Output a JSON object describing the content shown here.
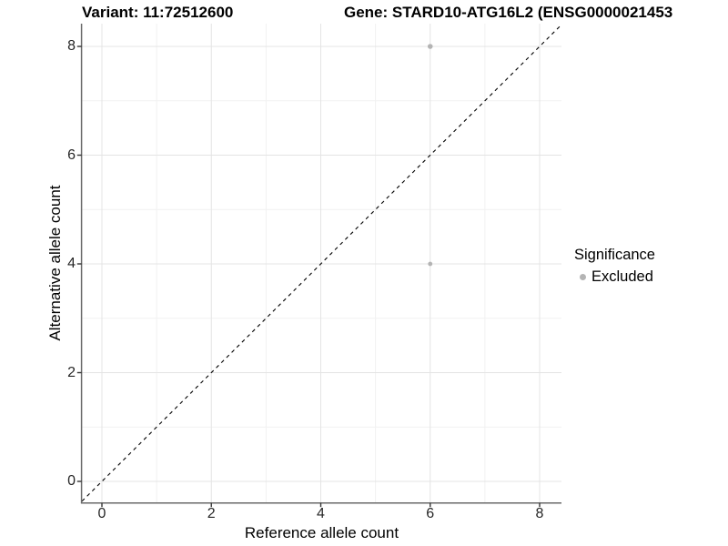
{
  "title": {
    "variant": "Variant: 11:72512600",
    "gene": "Gene: STARD10-ATG16L2 (ENSG0000021453"
  },
  "chart_data": {
    "type": "scatter",
    "x": {
      "label": "Reference allele count",
      "ticks": [
        0,
        2,
        4,
        6,
        8
      ],
      "minor_ticks": [
        1,
        3,
        5,
        7
      ],
      "range": [
        -0.37,
        8.4
      ]
    },
    "y": {
      "label": "Alternative allele count",
      "ticks": [
        0,
        2,
        4,
        6,
        8
      ],
      "minor_ticks": [
        1,
        3,
        5,
        7
      ],
      "range": [
        -0.38,
        8.42
      ]
    },
    "series": [
      {
        "name": "Excluded",
        "color": "#b4b4b4",
        "points": [
          {
            "x": 6,
            "y": 8,
            "r": 2.8
          },
          {
            "x": 6,
            "y": 4,
            "r": 2.4
          }
        ]
      }
    ],
    "reference_line": {
      "type": "identity",
      "equation": "y = x",
      "style": "dashed",
      "color": "#000000"
    },
    "grid": true,
    "legend": {
      "title": "Significance",
      "position": "right",
      "items": [
        {
          "label": "Excluded",
          "color": "#b4b4b4"
        }
      ]
    }
  },
  "colors": {
    "grid_major": "#e4e4e4",
    "grid_minor": "#f1f1f1",
    "axis_line": "#6a6a6a",
    "tick_mark": "#333333",
    "point": "#b4b4b4",
    "reference_line": "#000000"
  }
}
